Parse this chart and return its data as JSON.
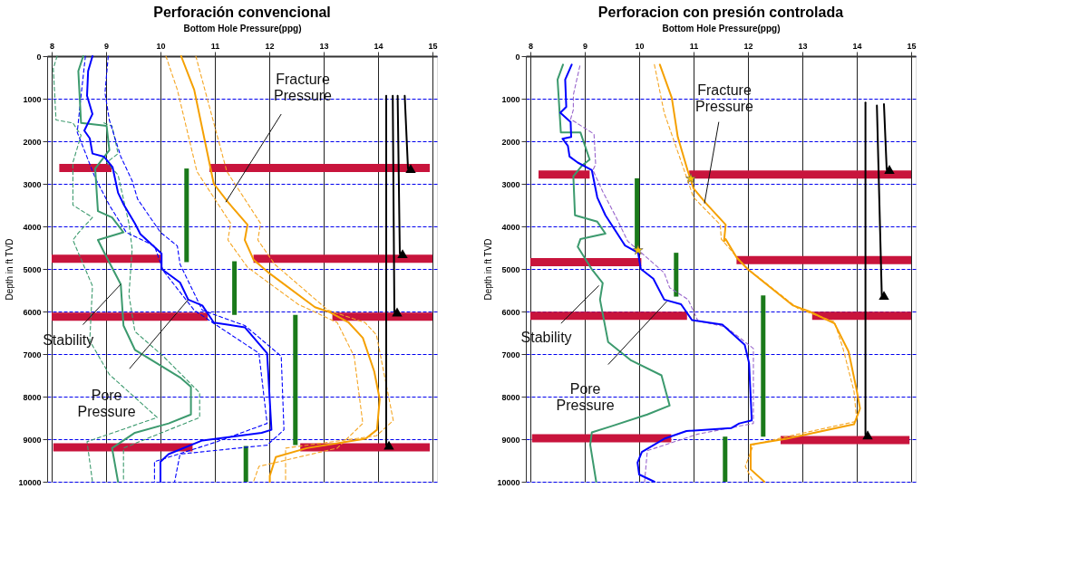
{
  "chart_data": [
    {
      "type": "line",
      "title": "Perforación convencional",
      "xlabel": "Bottom Hole Pressure(ppg)",
      "ylabel": "Depth in ft TVD",
      "xlim": [
        8,
        15
      ],
      "ylim": [
        10000,
        0
      ],
      "xticks": [
        8,
        9,
        10,
        11,
        12,
        13,
        14,
        15
      ],
      "yticks": [
        0,
        1000,
        2000,
        3000,
        4000,
        5000,
        6000,
        7000,
        8000,
        9000,
        10000
      ],
      "grid": true,
      "series": [
        {
          "color": "#3c9a6e",
          "line_style": "dashed",
          "x": [
            8.1,
            8.03,
            8.08,
            8.39,
            8.54,
            8.39,
            8.39,
            8.75,
            8.5,
            8.39,
            8.75,
            8.7,
            9.06,
            9.94,
            8.65,
            8.75
          ],
          "values": [
            0,
            290,
            1500,
            1570,
            1860,
            2500,
            3500,
            3790,
            4140,
            4320,
            5400,
            6690,
            7480,
            8490,
            9060,
            10000
          ]
        },
        {
          "color": "#3c9a6e",
          "line_style": "dashed",
          "x": [
            8.96,
            9.11,
            9.22,
            9.01,
            9.22,
            9.42,
            9.48,
            9.42,
            9.53,
            10.05,
            10.72,
            10.72,
            9.32,
            9.32
          ],
          "values": [
            1570,
            1640,
            2290,
            2500,
            2790,
            3930,
            4530,
            5610,
            6470,
            7050,
            7910,
            8490,
            9210,
            10000
          ]
        },
        {
          "color": "#0000ff",
          "line_style": "dashed",
          "x": [
            8.62,
            8.54,
            8.47,
            8.6,
            8.8,
            9.06,
            9.37,
            9.89,
            10.05,
            10.62,
            11.04,
            11.81,
            11.96,
            11.04,
            9.89,
            9.89
          ],
          "values": [
            0,
            930,
            1790,
            2210,
            2860,
            3500,
            4140,
            4460,
            5040,
            5970,
            6330,
            6980,
            8630,
            9060,
            9530,
            10000
          ]
        },
        {
          "color": "#0000ff",
          "line_style": "dashed",
          "x": [
            9.04,
            8.98,
            9.06,
            9.27,
            9.48,
            9.58,
            10.0,
            10.31,
            10.36,
            10.77,
            11.55,
            12.22,
            12.27,
            11.96,
            10.36,
            10.26
          ],
          "values": [
            0,
            860,
            1500,
            2360,
            2930,
            3360,
            4140,
            4460,
            4890,
            5970,
            6330,
            7050,
            8780,
            9140,
            9350,
            10000
          ]
        },
        {
          "color": "#f5a623",
          "line_style": "dashed",
          "x": [
            10.1,
            10.31,
            10.67,
            11.29,
            11.24,
            11.6,
            12.53,
            13.25,
            13.56,
            13.72,
            13.25,
            11.81,
            11.71
          ],
          "values": [
            0,
            790,
            2710,
            3930,
            4320,
            4960,
            5830,
            6260,
            7050,
            8630,
            9210,
            9640,
            10000
          ]
        },
        {
          "color": "#f5a623",
          "line_style": "dashed",
          "x": [
            10.65,
            10.86,
            11.22,
            11.84,
            11.79,
            12.1,
            13.08,
            13.76,
            13.97,
            14.28,
            13.97,
            12.3,
            12.3
          ],
          "values": [
            0,
            1000,
            2710,
            3930,
            4320,
            4890,
            5970,
            6260,
            6550,
            8560,
            8920,
            9210,
            10000
          ]
        },
        {
          "color": "#3c9a6e",
          "x": [
            8.58,
            8.49,
            8.54,
            9.01,
            9.06,
            8.8,
            8.85,
            9.11,
            9.32,
            8.85,
            8.96,
            9.27,
            9.32,
            9.53,
            10.0,
            10.36,
            10.56,
            10.56,
            10.15,
            9.53,
            9.11,
            9.22
          ],
          "values": [
            0,
            350,
            1570,
            1640,
            2210,
            2640,
            3640,
            3790,
            4140,
            4320,
            4600,
            5360,
            6330,
            6900,
            7270,
            7550,
            7770,
            8420,
            8630,
            8850,
            9210,
            10000
          ]
        },
        {
          "color": "#0000ff",
          "x": [
            8.75,
            8.67,
            8.65,
            8.75,
            8.6,
            8.7,
            8.75,
            8.96,
            9.12,
            9.22,
            9.33,
            9.53,
            9.63,
            10.02,
            10.02,
            10.36,
            10.51,
            10.77,
            10.98,
            11.55,
            11.96,
            12.04,
            11.86,
            10.77,
            10.15,
            10.0,
            10.0
          ],
          "values": [
            0,
            350,
            930,
            1360,
            1750,
            1930,
            2290,
            2360,
            2610,
            3210,
            3500,
            3930,
            4180,
            4640,
            5000,
            5320,
            5720,
            5860,
            6260,
            6370,
            6980,
            8780,
            8850,
            9030,
            9350,
            9530,
            10000
          ]
        },
        {
          "color": "#f5a000",
          "x": [
            10.38,
            10.62,
            10.98,
            11.24,
            11.6,
            11.55,
            11.71,
            12.01,
            12.84,
            13.1,
            13.46,
            13.72,
            13.93,
            14.03,
            13.98,
            13.77,
            12.69,
            12.12,
            12.01,
            12.01
          ],
          "values": [
            0,
            790,
            3000,
            3430,
            3960,
            4320,
            4780,
            5110,
            5900,
            6010,
            6260,
            6620,
            7410,
            8060,
            8780,
            8990,
            9210,
            9420,
            9860,
            10000
          ]
        },
        {
          "color": "#c8143c",
          "x": [
            8.14,
            9.1
          ],
          "values": [
            2630,
            2630
          ]
        },
        {
          "color": "#c8143c",
          "x": [
            10.9,
            14.95
          ],
          "values": [
            2630,
            2630
          ]
        },
        {
          "color": "#c8143c",
          "x": [
            8.0,
            10.02
          ],
          "values": [
            4760,
            4760
          ]
        },
        {
          "color": "#c8143c",
          "x": [
            11.71,
            15.0
          ],
          "values": [
            4760,
            4760
          ]
        },
        {
          "color": "#c8143c",
          "x": [
            8.0,
            10.87
          ],
          "values": [
            6120,
            6120
          ]
        },
        {
          "color": "#c8143c",
          "x": [
            13.16,
            15.0
          ],
          "values": [
            6120,
            6120
          ]
        },
        {
          "color": "#c8143c",
          "x": [
            8.03,
            10.59
          ],
          "values": [
            9190,
            9190
          ]
        },
        {
          "color": "#c8143c",
          "x": [
            12.57,
            14.95
          ],
          "values": [
            9190,
            9190
          ]
        },
        {
          "type": "bar",
          "color": "#1a7a1a",
          "x": [
            10.48,
            11.36,
            11.57,
            12.48
          ],
          "base": [
            2640,
            4820,
            9160,
            6080
          ],
          "values": [
            2200,
            1260,
            840,
            3060
          ]
        },
        {
          "color": "#000000",
          "x": [
            14.15,
            14.15
          ],
          "values": [
            930,
            9140
          ]
        },
        {
          "color": "#000000",
          "x": [
            14.27,
            14.3
          ],
          "values": [
            930,
            6010
          ]
        },
        {
          "color": "#000000",
          "x": [
            14.36,
            14.4
          ],
          "values": [
            930,
            4640
          ]
        },
        {
          "color": "#000000",
          "x": [
            14.49,
            14.55
          ],
          "values": [
            930,
            2640
          ]
        },
        {
          "type": "scatter",
          "marker": "triangle",
          "color": "#000000",
          "x": [
            14.2,
            14.35,
            14.45,
            14.6
          ],
          "values": [
            9140,
            6010,
            4640,
            2640
          ]
        }
      ],
      "annotations": [
        {
          "text": "Fracture\nPressure",
          "x": 11.2,
          "y": 3430
        },
        {
          "text": "Stability",
          "x": 9.27,
          "y": 5360
        },
        {
          "text": "Pore\nPressure",
          "x": 10.51,
          "y": 5720
        }
      ]
    },
    {
      "type": "line",
      "title": "Perforacion con presión controlada",
      "xlabel": "Bottom Hole Pressure(ppg)",
      "ylabel": "Depth in ft TVD",
      "xlim": [
        8,
        15
      ],
      "ylim": [
        10000,
        0
      ],
      "xticks": [
        8,
        9,
        10,
        11,
        12,
        13,
        14,
        15
      ],
      "yticks": [
        0,
        1000,
        2000,
        3000,
        4000,
        5000,
        6000,
        7000,
        8000,
        9000,
        10000
      ],
      "grid": true,
      "series": [
        {
          "color": "#9966cc",
          "line_style": "dashed",
          "x": [
            8.91,
            8.79,
            8.79,
            8.74,
            9.17,
            9.2,
            9.15,
            9.33,
            9.59,
            9.79,
            10.13,
            10.46,
            10.56,
            10.9,
            11.08,
            11.59,
            12.1,
            12.1,
            11.08,
            10.15,
            10.1
          ],
          "values": [
            230,
            910,
            1260,
            1480,
            1830,
            2540,
            2680,
            3180,
            3820,
            4350,
            4720,
            5090,
            5440,
            5720,
            6220,
            6360,
            6870,
            8630,
            8880,
            9270,
            10000
          ]
        },
        {
          "color": "#f5a623",
          "line_style": "dashed",
          "x": [
            10.28,
            10.46,
            10.77,
            11.0,
            11.49,
            11.51,
            11.95,
            12.93,
            13.59,
            13.75,
            13.95,
            14.0,
            12.71,
            12.1,
            11.95,
            12.1
          ],
          "values": [
            200,
            1330,
            2470,
            3320,
            3960,
            4300,
            4950,
            5940,
            6240,
            6880,
            7880,
            8580,
            8940,
            9130,
            9640,
            10000
          ]
        },
        {
          "color": "#3c9a6e",
          "x": [
            8.6,
            8.5,
            8.56,
            8.92,
            9.09,
            8.95,
            8.79,
            8.82,
            9.23,
            9.38,
            8.92,
            8.87,
            9.13,
            9.33,
            9.28,
            9.43,
            9.84,
            10.41,
            10.56,
            10.15,
            9.48,
            9.13,
            9.1,
            9.21
          ],
          "values": [
            200,
            550,
            1790,
            1790,
            2430,
            2570,
            2820,
            3740,
            3890,
            4170,
            4300,
            4480,
            5010,
            5330,
            5720,
            6720,
            7140,
            7500,
            8210,
            8420,
            8700,
            8840,
            9130,
            10000
          ]
        },
        {
          "color": "#0000ff",
          "x": [
            8.76,
            8.64,
            8.66,
            8.55,
            8.74,
            8.75,
            8.59,
            8.69,
            8.72,
            8.87,
            9.13,
            9.23,
            9.38,
            9.69,
            9.74,
            9.98,
            10.03,
            10.26,
            10.46,
            10.77,
            10.97,
            11.53,
            11.94,
            12.02,
            12.07,
            11.84,
            11.69,
            10.87,
            10.46,
            10.05,
            9.97,
            10.0,
            10.28
          ],
          "values": [
            200,
            550,
            1190,
            1330,
            1550,
            1900,
            1940,
            2110,
            2360,
            2500,
            2680,
            3320,
            3740,
            4350,
            4450,
            4620,
            5000,
            5230,
            5720,
            5830,
            6200,
            6310,
            6780,
            7210,
            8560,
            8630,
            8740,
            8810,
            8990,
            9300,
            9550,
            9830,
            10000
          ]
        },
        {
          "color": "#f5a000",
          "x": [
            10.38,
            10.6,
            10.71,
            10.89,
            11.0,
            11.23,
            11.59,
            11.56,
            11.59,
            11.79,
            12.0,
            12.83,
            13.13,
            13.59,
            13.85,
            14.0,
            14.06,
            13.95,
            12.71,
            12.05,
            12.05,
            12.3
          ],
          "values": [
            200,
            980,
            1900,
            2680,
            3110,
            3460,
            3960,
            4350,
            4300,
            4730,
            5010,
            5860,
            6000,
            6280,
            6940,
            7860,
            8280,
            8650,
            8990,
            9130,
            9710,
            10000
          ]
        },
        {
          "color": "#c8143c",
          "x": [
            8.15,
            9.09
          ],
          "values": [
            2780,
            2780
          ]
        },
        {
          "color": "#c8143c",
          "x": [
            10.92,
            15.0
          ],
          "values": [
            2780,
            2780
          ]
        },
        {
          "color": "#c8143c",
          "x": [
            8.0,
            10.04
          ],
          "values": [
            4840,
            4840
          ]
        },
        {
          "color": "#c8143c",
          "x": [
            11.79,
            15.0
          ],
          "values": [
            4790,
            4790
          ]
        },
        {
          "color": "#c8143c",
          "x": [
            8.0,
            10.88
          ],
          "values": [
            6100,
            6100
          ]
        },
        {
          "color": "#c8143c",
          "x": [
            13.18,
            15.0
          ],
          "values": [
            6100,
            6100
          ]
        },
        {
          "color": "#c8143c",
          "x": [
            8.03,
            10.59
          ],
          "values": [
            8980,
            8980
          ]
        },
        {
          "color": "#c8143c",
          "x": [
            12.6,
            14.97
          ],
          "values": [
            9020,
            9020
          ]
        },
        {
          "type": "bar",
          "color": "#1a7a1a",
          "x": [
            9.96,
            10.68,
            11.58,
            12.28
          ],
          "base": [
            2870,
            4620,
            8940,
            5620
          ],
          "values": [
            1650,
            1030,
            1060,
            3320
          ]
        },
        {
          "color": "#000000",
          "x": [
            14.16,
            14.16
          ],
          "values": [
            1090,
            8900
          ]
        },
        {
          "color": "#000000",
          "x": [
            14.37,
            14.46
          ],
          "values": [
            1160,
            5620
          ]
        },
        {
          "color": "#000000",
          "x": [
            14.5,
            14.55
          ],
          "values": [
            1130,
            2660
          ]
        },
        {
          "type": "scatter",
          "marker": "triangle",
          "color": "#000000",
          "x": [
            14.2,
            14.5,
            14.6
          ],
          "values": [
            8900,
            5620,
            2660
          ]
        },
        {
          "type": "scatter",
          "marker": "star",
          "color": "#f5c400",
          "x": [
            10.95,
            9.98
          ],
          "values": [
            2880,
            4560
          ]
        }
      ],
      "annotations": [
        {
          "text": "Fracture\nPressure",
          "x": 11.2,
          "y": 3460
        },
        {
          "text": "Stability",
          "x": 9.26,
          "y": 5390
        },
        {
          "text": "Pore\nPressure",
          "x": 10.51,
          "y": 5760
        }
      ]
    }
  ]
}
